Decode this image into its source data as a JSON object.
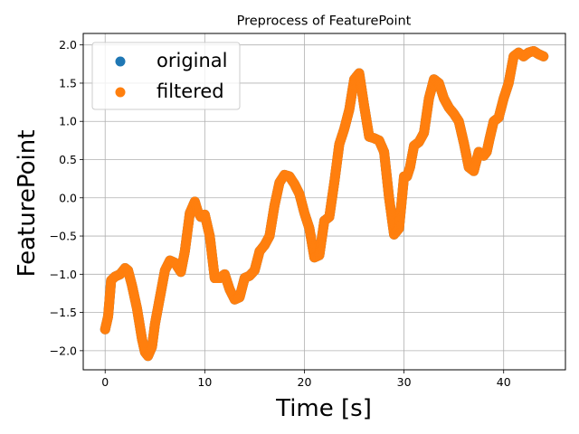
{
  "chart_data": {
    "type": "scatter",
    "title": "Preprocess of FeaturePoint",
    "xlabel": "Time [s]",
    "ylabel": "FeaturePoint",
    "xlim": [
      -2.2,
      46.2
    ],
    "ylim": [
      -2.25,
      2.15
    ],
    "xticks": [
      0,
      10,
      20,
      30,
      40
    ],
    "yticks": [
      -2.0,
      -1.5,
      -1.0,
      -0.5,
      0.0,
      0.5,
      1.0,
      1.5,
      2.0
    ],
    "xtick_labels": [
      "0",
      "10",
      "20",
      "30",
      "40"
    ],
    "ytick_labels": [
      "−2.0",
      "−1.5",
      "−1.0",
      "−0.5",
      "0.0",
      "0.5",
      "1.0",
      "1.5",
      "2.0"
    ],
    "grid": true,
    "legend_position": "upper-left",
    "series": [
      {
        "name": "original",
        "color": "#1f77b4",
        "x": [
          0.0,
          0.3,
          0.6,
          1.0,
          1.5,
          2.0,
          2.3,
          2.7,
          3.2,
          3.7,
          4.0,
          4.3,
          4.7,
          5.0,
          5.5,
          6.0,
          6.5,
          7.0,
          7.6,
          8.0,
          8.5,
          9.0,
          9.3,
          9.6,
          10.0,
          10.5,
          11.0,
          11.5,
          12.0,
          12.5,
          13.0,
          13.5,
          14.0,
          14.5,
          15.0,
          15.5,
          16.0,
          16.5,
          17.0,
          17.5,
          18.0,
          18.5,
          19.0,
          19.5,
          20.0,
          20.5,
          21.0,
          21.5,
          22.0,
          22.5,
          23.0,
          23.5,
          24.0,
          24.5,
          25.0,
          25.5,
          26.0,
          26.5,
          27.0,
          27.5,
          28.0,
          28.5,
          29.0,
          29.5,
          30.0,
          30.3,
          30.6,
          31.0,
          31.5,
          32.0,
          32.5,
          33.0,
          33.5,
          34.0,
          34.5,
          35.0,
          35.5,
          36.0,
          36.5,
          37.0,
          37.5,
          38.0,
          38.3,
          38.6,
          39.0,
          39.5,
          40.0,
          40.5,
          41.0,
          41.5,
          42.0,
          42.5,
          43.0,
          43.5,
          44.0
        ],
        "y": [
          -1.72,
          -1.55,
          -1.08,
          -1.03,
          -1.0,
          -0.92,
          -0.95,
          -1.15,
          -1.45,
          -1.85,
          -2.02,
          -2.07,
          -1.95,
          -1.65,
          -1.3,
          -0.95,
          -0.82,
          -0.85,
          -0.97,
          -0.7,
          -0.2,
          -0.05,
          -0.18,
          -0.25,
          -0.22,
          -0.5,
          -1.05,
          -1.05,
          -1.0,
          -1.2,
          -1.33,
          -1.3,
          -1.05,
          -1.02,
          -0.95,
          -0.7,
          -0.62,
          -0.5,
          -0.1,
          0.2,
          0.3,
          0.28,
          0.18,
          0.05,
          -0.2,
          -0.4,
          -0.78,
          -0.75,
          -0.3,
          -0.25,
          0.2,
          0.7,
          0.9,
          1.15,
          1.55,
          1.63,
          1.2,
          0.8,
          0.78,
          0.75,
          0.6,
          0.0,
          -0.48,
          -0.4,
          0.28,
          0.28,
          0.4,
          0.68,
          0.73,
          0.85,
          1.3,
          1.55,
          1.5,
          1.3,
          1.18,
          1.1,
          1.0,
          0.72,
          0.4,
          0.35,
          0.6,
          0.55,
          0.6,
          0.78,
          1.0,
          1.05,
          1.3,
          1.5,
          1.85,
          1.9,
          1.85,
          1.9,
          1.92,
          1.88,
          1.85
        ]
      },
      {
        "name": "filtered",
        "color": "#ff7f0e",
        "x": [
          0.0,
          0.3,
          0.6,
          1.0,
          1.5,
          2.0,
          2.3,
          2.7,
          3.2,
          3.7,
          4.0,
          4.3,
          4.7,
          5.0,
          5.5,
          6.0,
          6.5,
          7.0,
          7.6,
          8.0,
          8.5,
          9.0,
          9.3,
          9.6,
          10.0,
          10.5,
          11.0,
          11.5,
          12.0,
          12.5,
          13.0,
          13.5,
          14.0,
          14.5,
          15.0,
          15.5,
          16.0,
          16.5,
          17.0,
          17.5,
          18.0,
          18.5,
          19.0,
          19.5,
          20.0,
          20.5,
          21.0,
          21.5,
          22.0,
          22.5,
          23.0,
          23.5,
          24.0,
          24.5,
          25.0,
          25.5,
          26.0,
          26.5,
          27.0,
          27.5,
          28.0,
          28.5,
          29.0,
          29.5,
          30.0,
          30.3,
          30.6,
          31.0,
          31.5,
          32.0,
          32.5,
          33.0,
          33.5,
          34.0,
          34.5,
          35.0,
          35.5,
          36.0,
          36.5,
          37.0,
          37.5,
          38.0,
          38.3,
          38.6,
          39.0,
          39.5,
          40.0,
          40.5,
          41.0,
          41.5,
          42.0,
          42.5,
          43.0,
          43.5,
          44.0
        ],
        "y": [
          -1.72,
          -1.55,
          -1.08,
          -1.03,
          -1.0,
          -0.92,
          -0.95,
          -1.15,
          -1.45,
          -1.85,
          -2.02,
          -2.07,
          -1.95,
          -1.65,
          -1.3,
          -0.95,
          -0.82,
          -0.85,
          -0.97,
          -0.7,
          -0.2,
          -0.05,
          -0.18,
          -0.25,
          -0.22,
          -0.5,
          -1.05,
          -1.05,
          -1.0,
          -1.2,
          -1.33,
          -1.3,
          -1.05,
          -1.02,
          -0.95,
          -0.7,
          -0.62,
          -0.5,
          -0.1,
          0.2,
          0.3,
          0.28,
          0.18,
          0.05,
          -0.2,
          -0.4,
          -0.78,
          -0.75,
          -0.3,
          -0.25,
          0.2,
          0.7,
          0.9,
          1.15,
          1.55,
          1.63,
          1.2,
          0.8,
          0.78,
          0.75,
          0.6,
          0.0,
          -0.48,
          -0.4,
          0.28,
          0.28,
          0.4,
          0.68,
          0.73,
          0.85,
          1.3,
          1.55,
          1.5,
          1.3,
          1.18,
          1.1,
          1.0,
          0.72,
          0.4,
          0.35,
          0.6,
          0.55,
          0.6,
          0.78,
          1.0,
          1.05,
          1.3,
          1.5,
          1.85,
          1.9,
          1.85,
          1.9,
          1.92,
          1.88,
          1.85
        ]
      }
    ]
  }
}
